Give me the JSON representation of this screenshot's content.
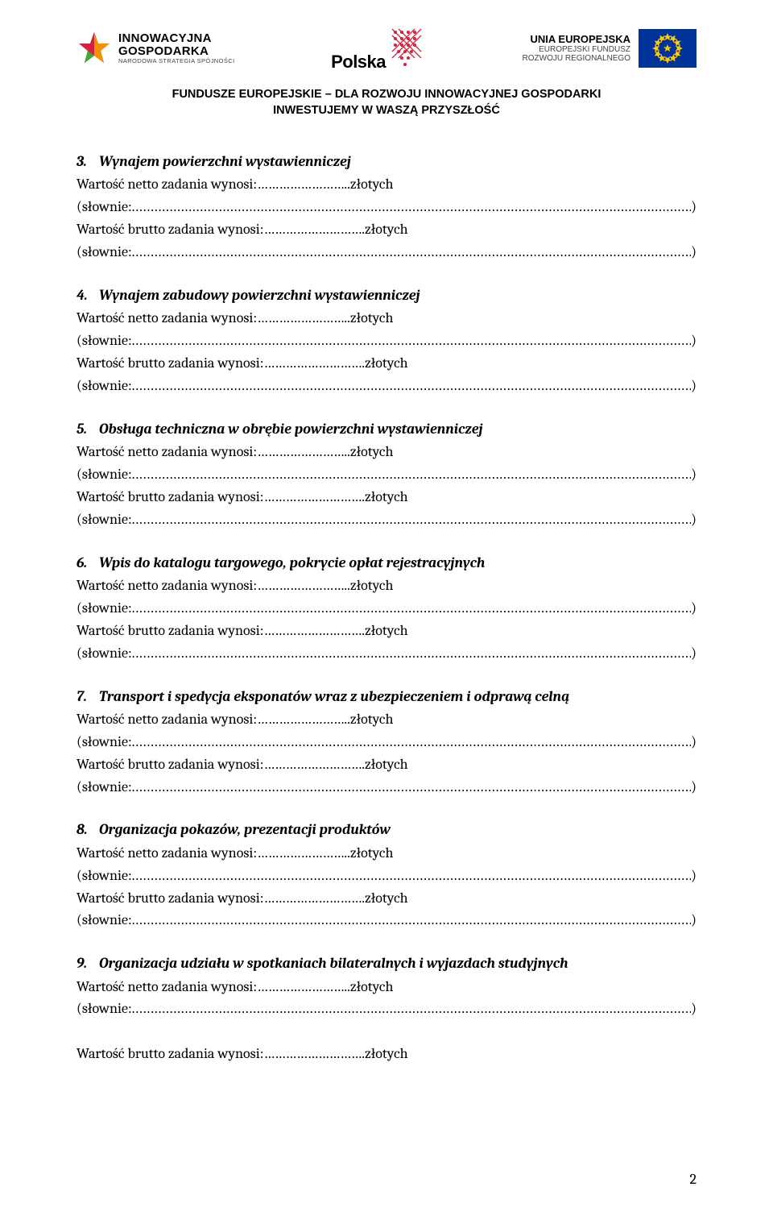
{
  "header": {
    "logo_left": {
      "line1": "INNOWACYJNA",
      "line2": "GOSPODARKA",
      "line3": "NARODOWA STRATEGIA SPÓJNOŚCI"
    },
    "logo_center": {
      "text": "Polska"
    },
    "logo_right": {
      "line1": "UNIA EUROPEJSKA",
      "line2": "EUROPEJSKI FUNDUSZ",
      "line3": "ROZWOJU REGIONALNEGO"
    },
    "title_line1": "FUNDUSZE EUROPEJSKIE – DLA ROZWOJU INNOWACYJNEJ GOSPODARKI",
    "title_line2": "INWESTUJEMY W WASZĄ PRZYSZŁOŚĆ"
  },
  "labels": {
    "netto_prefix": "Wartość netto zadania wynosi: ",
    "brutto_prefix": "Wartość brutto zadania wynosi: ",
    "dots_short": "……………………..",
    "dots_short2": "……………………….",
    "zlotych": "złotych",
    "slownie_open": "(słownie:",
    "slownie_close": ")"
  },
  "sections": [
    {
      "num": "3.",
      "title": "Wynajem powierzchni wystawienniczej",
      "full": true
    },
    {
      "num": "4.",
      "title": "Wynajem zabudowy powierzchni wystawienniczej",
      "full": true
    },
    {
      "num": "5.",
      "title": "Obsługa techniczna w obrębie powierzchni wystawienniczej",
      "full": true
    },
    {
      "num": "6.",
      "title": "Wpis do katalogu targowego, pokrycie opłat rejestracyjnych",
      "full": true
    },
    {
      "num": "7.",
      "title": "Transport i spedycja eksponatów wraz z ubezpieczeniem i odprawą celną",
      "full": true
    },
    {
      "num": "8.",
      "title": "Organizacja pokazów, prezentacji produktów",
      "full": true
    },
    {
      "num": "9.",
      "title": "Organizacja udziału w spotkaniach bilateralnych i wyjazdach studyjnych",
      "full": false
    }
  ],
  "page_number": "2",
  "colors": {
    "eu_blue": "#003399",
    "eu_gold": "#ffcc00",
    "pl_red": "#d4213d",
    "ig_orange": "#f39200",
    "ig_blue": "#1b4f9c",
    "ig_green": "#3aaa35"
  }
}
